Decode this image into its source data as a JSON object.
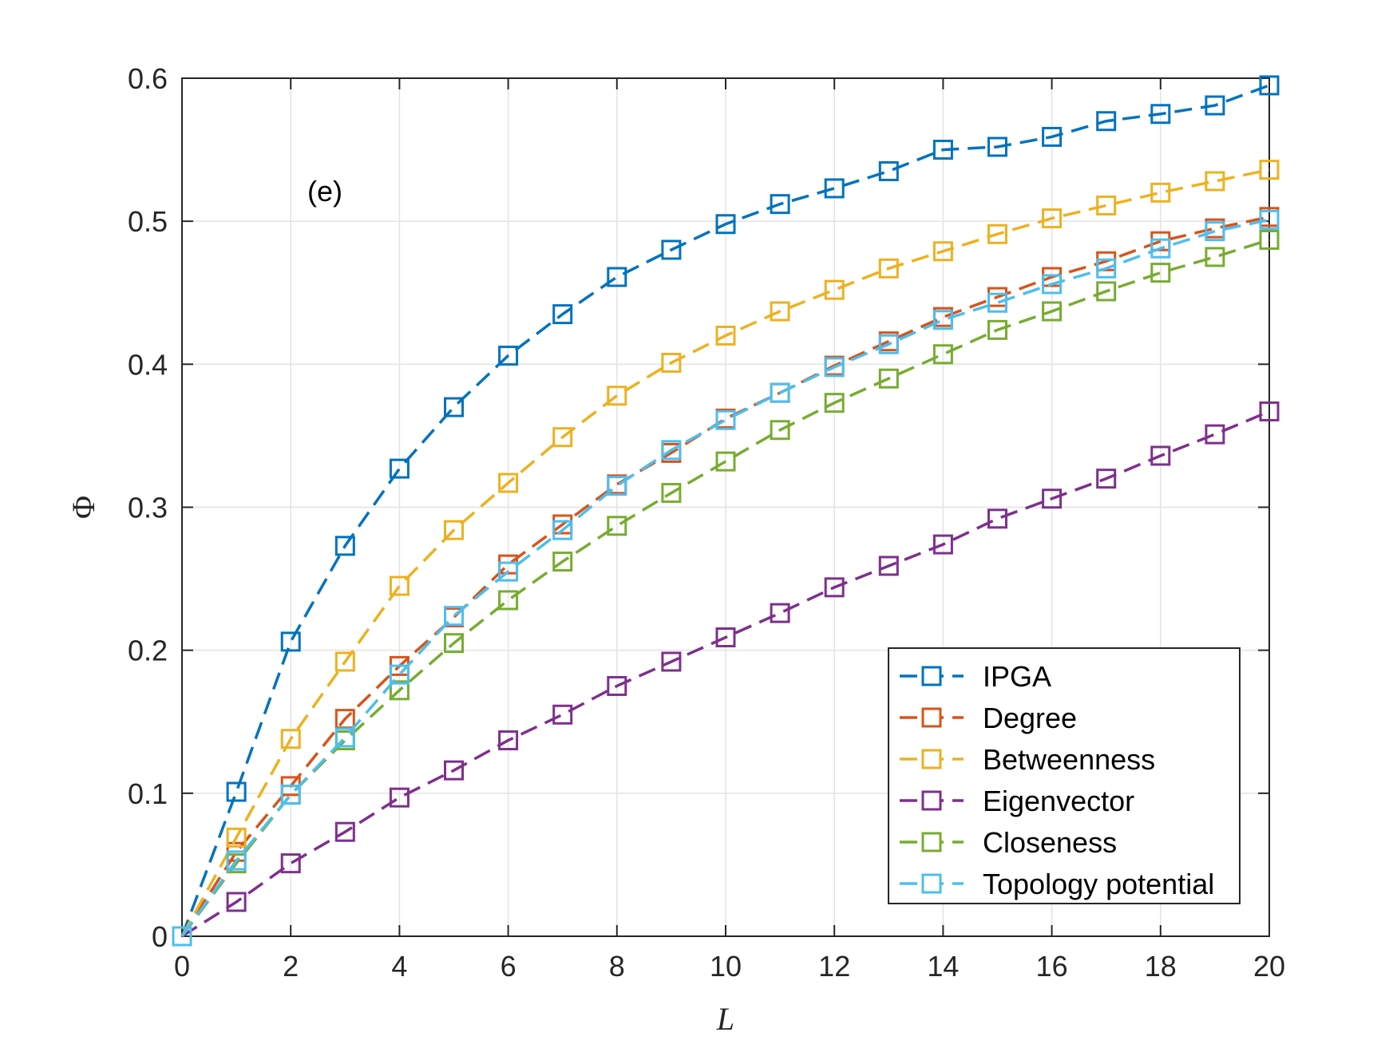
{
  "chart_data": {
    "type": "line",
    "title": "",
    "xlabel": "L",
    "ylabel": "Φ",
    "annotation": "(e)",
    "xlim": [
      0,
      20
    ],
    "ylim": [
      0,
      0.6
    ],
    "xticks": [
      0,
      2,
      4,
      6,
      8,
      10,
      12,
      14,
      16,
      18,
      20
    ],
    "yticks": [
      0,
      0.1,
      0.2,
      0.3,
      0.4,
      0.5,
      0.6
    ],
    "xtick_labels": [
      "0",
      "2",
      "4",
      "6",
      "8",
      "10",
      "12",
      "14",
      "16",
      "18",
      "20"
    ],
    "ytick_labels": [
      "0",
      "0.1",
      "0.2",
      "0.3",
      "0.4",
      "0.5",
      "0.6"
    ],
    "grid": true,
    "legend_position": "bottom-right",
    "x": [
      0,
      1,
      2,
      3,
      4,
      5,
      6,
      7,
      8,
      9,
      10,
      11,
      12,
      13,
      14,
      15,
      16,
      17,
      18,
      19,
      20
    ],
    "series": [
      {
        "name": "IPGA",
        "color": "#0072BD",
        "marker": "square",
        "line": "dashed",
        "values": [
          0,
          0.101,
          0.206,
          0.273,
          0.327,
          0.37,
          0.406,
          0.435,
          0.461,
          0.48,
          0.498,
          0.512,
          0.523,
          0.535,
          0.55,
          0.552,
          0.559,
          0.57,
          0.575,
          0.581,
          0.595
        ]
      },
      {
        "name": "Degree",
        "color": "#D95319",
        "marker": "square",
        "line": "dashed",
        "values": [
          0,
          0.059,
          0.105,
          0.152,
          0.189,
          0.223,
          0.26,
          0.288,
          0.316,
          0.338,
          0.362,
          0.38,
          0.399,
          0.416,
          0.433,
          0.447,
          0.461,
          0.472,
          0.486,
          0.495,
          0.503
        ]
      },
      {
        "name": "Betweenness",
        "color": "#EDB120",
        "marker": "square",
        "line": "dashed",
        "values": [
          0,
          0.069,
          0.138,
          0.192,
          0.245,
          0.284,
          0.317,
          0.349,
          0.378,
          0.401,
          0.42,
          0.437,
          0.452,
          0.467,
          0.479,
          0.491,
          0.502,
          0.511,
          0.52,
          0.528,
          0.536
        ]
      },
      {
        "name": "Eigenvector",
        "color": "#7E2F8E",
        "marker": "square",
        "line": "dashed",
        "values": [
          0,
          0.024,
          0.051,
          0.073,
          0.097,
          0.116,
          0.137,
          0.155,
          0.175,
          0.192,
          0.209,
          0.226,
          0.244,
          0.259,
          0.274,
          0.292,
          0.306,
          0.32,
          0.336,
          0.351,
          0.367
        ]
      },
      {
        "name": "Closeness",
        "color": "#77AC30",
        "marker": "square",
        "line": "dashed",
        "values": [
          0,
          0.051,
          0.099,
          0.137,
          0.172,
          0.205,
          0.235,
          0.262,
          0.287,
          0.31,
          0.332,
          0.354,
          0.373,
          0.39,
          0.407,
          0.424,
          0.437,
          0.451,
          0.464,
          0.475,
          0.487
        ]
      },
      {
        "name": "Topology potential",
        "color": "#4DBEEE",
        "marker": "square",
        "line": "dashed",
        "values": [
          0,
          0.053,
          0.099,
          0.139,
          0.183,
          0.224,
          0.255,
          0.284,
          0.315,
          0.34,
          0.361,
          0.38,
          0.398,
          0.414,
          0.431,
          0.443,
          0.456,
          0.467,
          0.481,
          0.493,
          0.501
        ]
      }
    ]
  }
}
